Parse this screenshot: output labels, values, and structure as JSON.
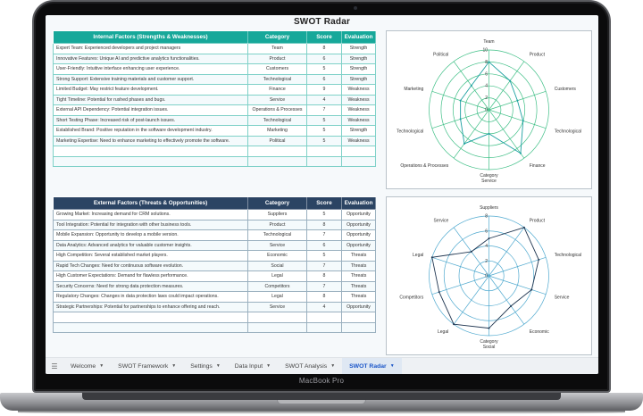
{
  "device": {
    "brand_label": "MacBook Pro"
  },
  "sheet": {
    "title": "SWOT Radar"
  },
  "internal_table": {
    "header_color": "#17a89a",
    "columns": [
      "Internal Factors (Strengths & Weaknesses)",
      "Category",
      "Score",
      "Evaluation"
    ],
    "rows": [
      [
        "Expert Team: Experienced developers and project managers",
        "Team",
        "8",
        "Strength"
      ],
      [
        "Innovative Features: Unique AI and predictive analytics functionalities.",
        "Product",
        "6",
        "Strength"
      ],
      [
        "User-Friendly: Intuitive interface enhancing user experience.",
        "Customers",
        "5",
        "Strength"
      ],
      [
        "Strong Support: Extensive training materials and customer support.",
        "Technological",
        "6",
        "Strength"
      ],
      [
        "Limited Budget: May restrict feature development.",
        "Finance",
        "9",
        "Weakness"
      ],
      [
        "Tight Timeline: Potential for rushed phases and bugs.",
        "Service",
        "4",
        "Weakness"
      ],
      [
        "External API Dependency: Potential integration issues.",
        "Operations & Processes",
        "7",
        "Weakness"
      ],
      [
        "Short Testing Phase: Increased risk of post-launch issues.",
        "Technological",
        "5",
        "Weakness"
      ],
      [
        "Established Brand: Positive reputation in the software development industry.",
        "Marketing",
        "5",
        "Strength"
      ],
      [
        "Marketing Expertise: Need to enhance marketing to effectively promote the software.",
        "Political",
        "5",
        "Weakness"
      ],
      [
        "",
        "",
        "",
        ""
      ],
      [
        "",
        "",
        "",
        ""
      ]
    ]
  },
  "external_table": {
    "header_color": "#2b4463",
    "columns": [
      "External Factors (Threats & Opportunities)",
      "Category",
      "Score",
      "Evaluation"
    ],
    "rows": [
      [
        "Growing Market: Increasing demand for CRM solutions.",
        "Suppliers",
        "5",
        "Opportunity"
      ],
      [
        "Tool Integration: Potential for integration with other business tools.",
        "Product",
        "8",
        "Opportunity"
      ],
      [
        "Mobile Expansion: Opportunity to develop a mobile version.",
        "Technological",
        "7",
        "Opportunity"
      ],
      [
        "Data Analytics: Advanced analytics for valuable customer insights.",
        "Service",
        "6",
        "Opportunity"
      ],
      [
        "High Competition: Several established market players.",
        "Economic",
        "5",
        "Threats"
      ],
      [
        "Rapid Tech Changes: Need for continuous software evolution.",
        "Social",
        "7",
        "Threats"
      ],
      [
        "High Customer Expectations: Demand for flawless performance.",
        "Legal",
        "8",
        "Threats"
      ],
      [
        "Security Concerns: Need for strong data protection measures.",
        "Competitors",
        "7",
        "Threats"
      ],
      [
        "Regulatory Changes: Changes in data protection laws could impact operations.",
        "Legal",
        "8",
        "Threats"
      ],
      [
        "Strategic Partnerships: Potential for partnerships to enhance offering and reach.",
        "Service",
        "4",
        "Opportunity"
      ],
      [
        "",
        "",
        "",
        ""
      ],
      [
        "",
        "",
        "",
        ""
      ]
    ]
  },
  "chart_data": [
    {
      "type": "radar",
      "title": "",
      "axis_title": "Category",
      "categories": [
        "Team",
        "Product",
        "Customers",
        "Technological",
        "Finance",
        "Service",
        "Operations & Processes",
        "Technological",
        "Marketing",
        "Political"
      ],
      "series": [
        {
          "name": "Score",
          "values": [
            8,
            6,
            5,
            6,
            9,
            4,
            7,
            5,
            5,
            5
          ]
        }
      ],
      "rlim": [
        0,
        10
      ],
      "ticks": [
        0,
        2,
        4,
        6,
        8,
        10
      ],
      "grid_color": "#3fbf86",
      "line_color": "#1a9fa0",
      "grid": true,
      "legend": "none"
    },
    {
      "type": "radar",
      "title": "",
      "axis_title": "Category",
      "categories": [
        "Suppliers",
        "Product",
        "Technological",
        "Service",
        "Economic",
        "Social",
        "Legal",
        "Competitors",
        "Legal",
        "Service"
      ],
      "series": [
        {
          "name": "Score",
          "values": [
            5,
            8,
            7,
            6,
            5,
            7,
            8,
            7,
            8,
            4
          ]
        }
      ],
      "rlim": [
        0,
        8
      ],
      "ticks": [
        0,
        2,
        4,
        6,
        8
      ],
      "grid_color": "#4fa9cf",
      "line_color": "#1f3550",
      "grid": true,
      "legend": "none"
    }
  ],
  "tabs": {
    "menu_icon": "hamburger-icon",
    "items": [
      {
        "label": "Welcome",
        "active": false
      },
      {
        "label": "SWOT Framework",
        "active": false
      },
      {
        "label": "Settings",
        "active": false
      },
      {
        "label": "Data Input",
        "active": false
      },
      {
        "label": "SWOT Analysis",
        "active": false
      },
      {
        "label": "SWOT Radar",
        "active": true
      }
    ]
  }
}
